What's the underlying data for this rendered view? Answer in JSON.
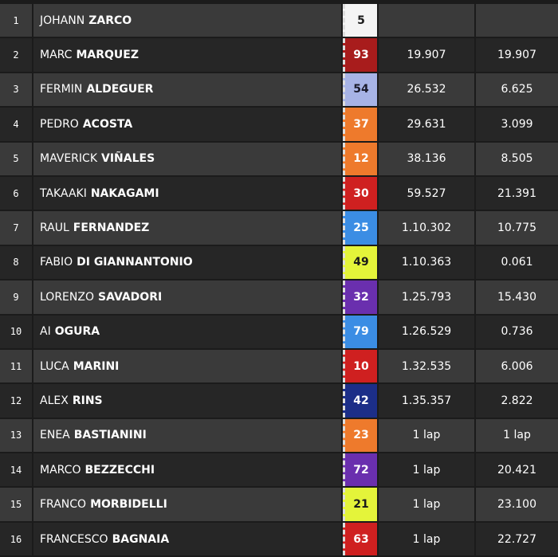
{
  "rows": [
    {
      "position": 1,
      "first_name": "JOHANN",
      "last_name": "ZARCO",
      "number": 5,
      "number_color": "#f4f4f4",
      "number_text_color": "#1a1a1a"
    },
    {
      "position": 2,
      "first_name": "MARC",
      "last_name": "MARQUEZ",
      "number": 93,
      "number_color": "#a81c1c",
      "number_text_color": "#ffffff",
      "gap": "19.907",
      "interval": "19.907"
    },
    {
      "position": 3,
      "first_name": "FERMIN",
      "last_name": "ALDEGUER",
      "number": 54,
      "number_color": "#a7b3e6",
      "number_text_color": "#1a1a2a",
      "gap": "26.532",
      "interval": "6.625"
    },
    {
      "position": 4,
      "first_name": "PEDRO",
      "last_name": "ACOSTA",
      "number": 37,
      "number_color": "#ee7a2c",
      "number_text_color": "#ffffff",
      "gap": "29.631",
      "interval": "3.099"
    },
    {
      "position": 5,
      "first_name": "MAVERICK",
      "last_name": "VIÑALES",
      "number": 12,
      "number_color": "#ee7a2c",
      "number_text_color": "#ffffff",
      "gap": "38.136",
      "interval": "8.505"
    },
    {
      "position": 6,
      "first_name": "TAKAAKI",
      "last_name": "NAKAGAMI",
      "number": 30,
      "number_color": "#cf2020",
      "number_text_color": "#ffffff",
      "gap": "59.527",
      "interval": "21.391"
    },
    {
      "position": 7,
      "first_name": "RAUL",
      "last_name": "FERNANDEZ",
      "number": 25,
      "number_color": "#3b8de4",
      "number_text_color": "#ffffff",
      "gap": "1.10.302",
      "interval": "10.775"
    },
    {
      "position": 8,
      "first_name": "FABIO",
      "last_name": "DI GIANNANTONIO",
      "number": 49,
      "number_color": "#e4f43a",
      "number_text_color": "#1a1a1a",
      "gap": "1.10.363",
      "interval": "0.061"
    },
    {
      "position": 9,
      "first_name": "LORENZO",
      "last_name": "SAVADORI",
      "number": 32,
      "number_color": "#6a2fae",
      "number_text_color": "#ffffff",
      "gap": "1.25.793",
      "interval": "15.430"
    },
    {
      "position": 10,
      "first_name": "AI",
      "last_name": "OGURA",
      "number": 79,
      "number_color": "#3b8de4",
      "number_text_color": "#ffffff",
      "gap": "1.26.529",
      "interval": "0.736"
    },
    {
      "position": 11,
      "first_name": "LUCA",
      "last_name": "MARINI",
      "number": 10,
      "number_color": "#cf2020",
      "number_text_color": "#ffffff",
      "gap": "1.32.535",
      "interval": "6.006"
    },
    {
      "position": 12,
      "first_name": "ALEX",
      "last_name": "RINS",
      "number": 42,
      "number_color": "#1c2e88",
      "number_text_color": "#ffffff",
      "gap": "1.35.357",
      "interval": "2.822"
    },
    {
      "position": 13,
      "first_name": "ENEA",
      "last_name": "BASTIANINI",
      "number": 23,
      "number_color": "#ee7a2c",
      "number_text_color": "#ffffff",
      "gap": "1 lap",
      "interval": "1 lap"
    },
    {
      "position": 14,
      "first_name": "MARCO",
      "last_name": "BEZZECCHI",
      "number": 72,
      "number_color": "#6a2fae",
      "number_text_color": "#ffffff",
      "gap": "1 lap",
      "interval": "20.421"
    },
    {
      "position": 15,
      "first_name": "FRANCO",
      "last_name": "MORBIDELLI",
      "number": 21,
      "number_color": "#e4f43a",
      "number_text_color": "#1a1a1a",
      "gap": "1 lap",
      "interval": "23.100"
    },
    {
      "position": 16,
      "first_name": "FRANCESCO",
      "last_name": "BAGNAIA",
      "number": 63,
      "number_color": "#cf2020",
      "number_text_color": "#ffffff",
      "gap": "1 lap",
      "interval": "22.727"
    }
  ]
}
